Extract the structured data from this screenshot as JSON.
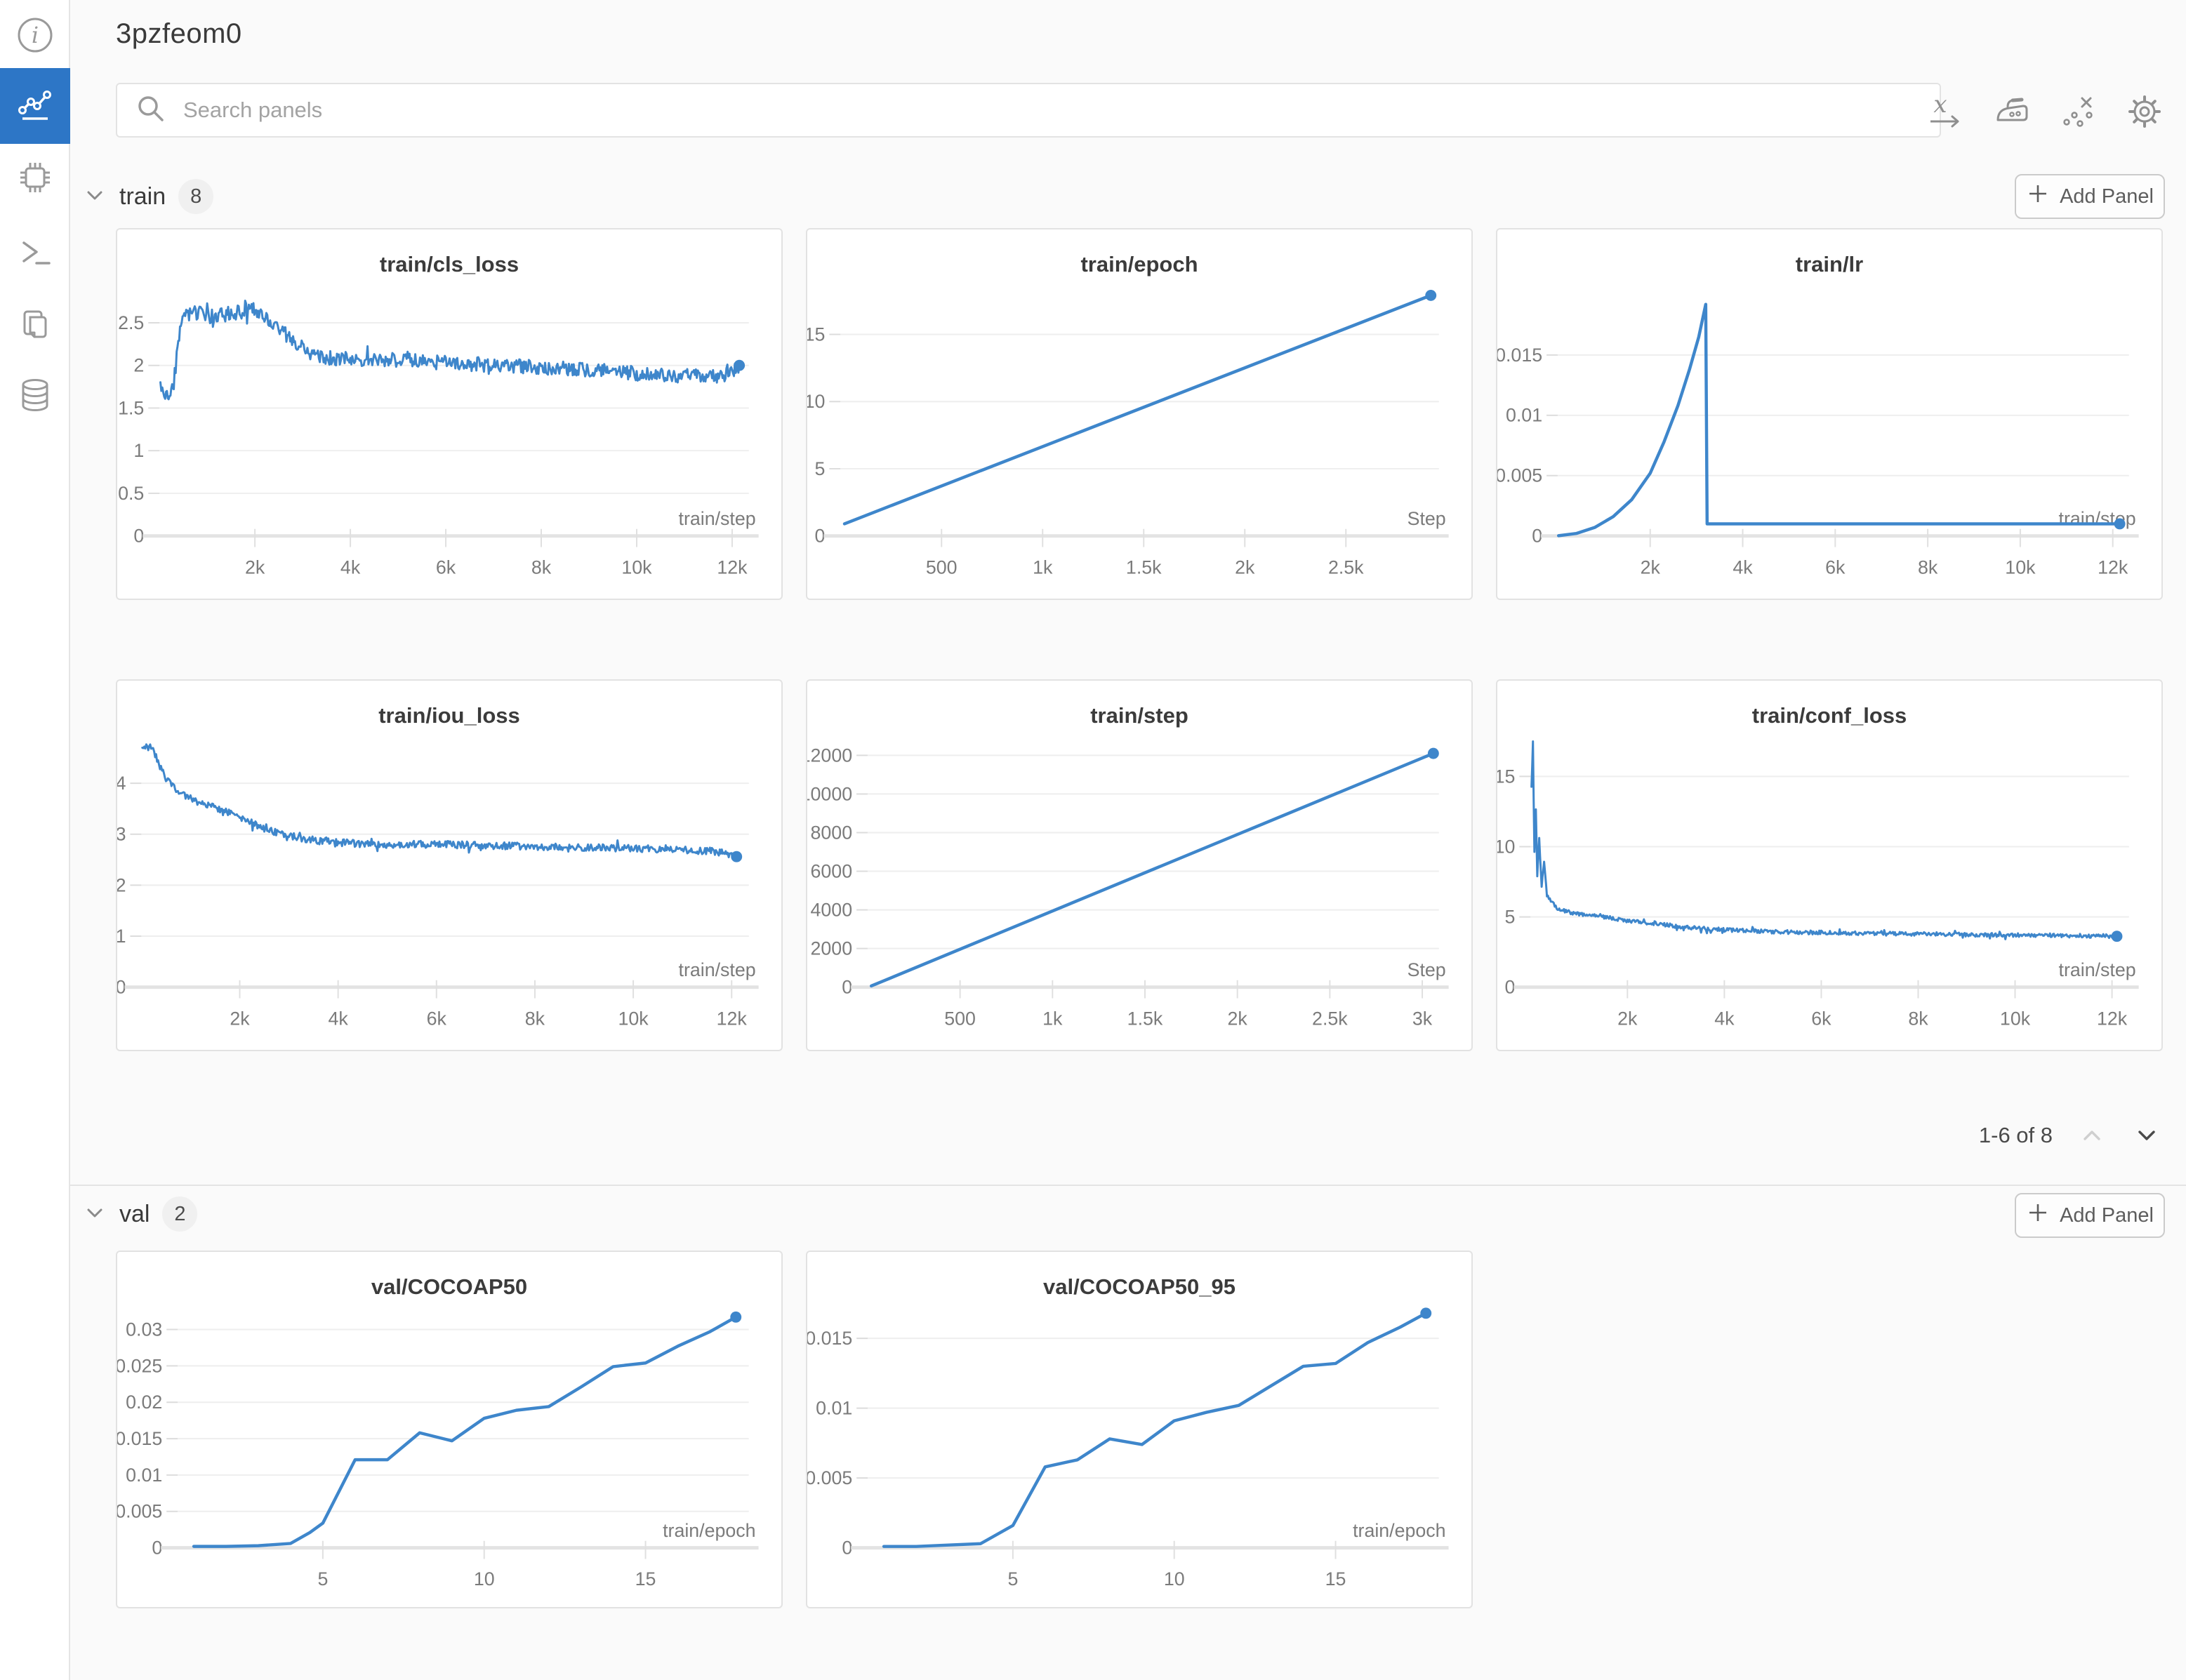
{
  "window": {
    "title": "3pzfeom0"
  },
  "colors": {
    "accent_line": "#3e86cb",
    "sidebar_active": "#2d76c6",
    "panel_border": "#e2e2e2",
    "grid_line": "#eeeeee",
    "axis_line": "#e3e3e3",
    "tick_text": "#7b7b7b"
  },
  "sidebar": {
    "icons": [
      "info-icon",
      "line-chart-icon",
      "chip-icon",
      "terminal-icon",
      "files-icon",
      "database-icon"
    ],
    "active_index": 1
  },
  "header": {
    "search_placeholder": "Search panels",
    "toolbar_icons": [
      "x-axis-icon",
      "smoothing-iron-icon",
      "outliers-icon",
      "settings-gear-icon"
    ]
  },
  "sections": [
    {
      "label": "train",
      "count": "8",
      "add_panel_label": "Add Panel",
      "pagination_text": "1-6 of 8"
    },
    {
      "label": "val",
      "count": "2",
      "add_panel_label": "Add Panel"
    }
  ],
  "chart_data": [
    {
      "title": "train/cls_loss",
      "type": "line",
      "geom": "train",
      "x_label": "train/step",
      "xlim": [
        0,
        12350
      ],
      "ylim": [
        0,
        2.9
      ],
      "x_ticks": [
        {
          "v": 2000,
          "label": "2k"
        },
        {
          "v": 4000,
          "label": "4k"
        },
        {
          "v": 6000,
          "label": "6k"
        },
        {
          "v": 8000,
          "label": "8k"
        },
        {
          "v": 10000,
          "label": "10k"
        },
        {
          "v": 12000,
          "label": "12k"
        }
      ],
      "y_ticks": [
        {
          "v": 0,
          "label": "0"
        },
        {
          "v": 0.5,
          "label": "0.5"
        },
        {
          "v": 1,
          "label": "1"
        },
        {
          "v": 1.5,
          "label": "1.5"
        },
        {
          "v": 2,
          "label": "2"
        },
        {
          "v": 2.5,
          "label": "2.5"
        }
      ],
      "end_dot": true,
      "series": [
        {
          "name": "3pzfeom0",
          "color": "#3e86cb",
          "noise": 0.085,
          "anchors": [
            [
              20,
              1.72
            ],
            [
              120,
              1.66
            ],
            [
              230,
              1.63
            ],
            [
              300,
              1.78
            ],
            [
              360,
              2.1
            ],
            [
              430,
              2.45
            ],
            [
              520,
              2.58
            ],
            [
              700,
              2.62
            ],
            [
              900,
              2.6
            ],
            [
              1100,
              2.57
            ],
            [
              1400,
              2.6
            ],
            [
              1700,
              2.63
            ],
            [
              1950,
              2.66
            ],
            [
              2200,
              2.56
            ],
            [
              2500,
              2.42
            ],
            [
              2800,
              2.3
            ],
            [
              3100,
              2.16
            ],
            [
              3400,
              2.1
            ],
            [
              3800,
              2.08
            ],
            [
              4300,
              2.07
            ],
            [
              5000,
              2.06
            ],
            [
              5600,
              2.04
            ],
            [
              6200,
              2.03
            ],
            [
              7000,
              2.0
            ],
            [
              7800,
              1.98
            ],
            [
              8600,
              1.96
            ],
            [
              9400,
              1.93
            ],
            [
              10200,
              1.9
            ],
            [
              10900,
              1.88
            ],
            [
              11500,
              1.87
            ],
            [
              12000,
              1.9
            ],
            [
              12150,
              2.0
            ]
          ]
        }
      ]
    },
    {
      "title": "train/epoch",
      "type": "line",
      "geom": "train",
      "x_label": "Step",
      "xlim": [
        0,
        2960
      ],
      "ylim": [
        0,
        18.4
      ],
      "x_ticks": [
        {
          "v": 500,
          "label": "500"
        },
        {
          "v": 1000,
          "label": "1k"
        },
        {
          "v": 1500,
          "label": "1.5k"
        },
        {
          "v": 2000,
          "label": "2k"
        },
        {
          "v": 2500,
          "label": "2.5k"
        }
      ],
      "y_ticks": [
        {
          "v": 0,
          "label": "0"
        },
        {
          "v": 5,
          "label": "5"
        },
        {
          "v": 10,
          "label": "10"
        },
        {
          "v": 15,
          "label": "15"
        }
      ],
      "end_dot": true,
      "series": [
        {
          "name": "3pzfeom0",
          "color": "#3e86cb",
          "noise": 0,
          "anchors": [
            [
              20,
              0.9
            ],
            [
              2920,
              17.9
            ]
          ]
        }
      ]
    },
    {
      "title": "train/lr",
      "type": "line",
      "geom": "train",
      "x_label": "train/step",
      "xlim": [
        0,
        12350
      ],
      "ylim": [
        0,
        0.0205
      ],
      "x_ticks": [
        {
          "v": 2000,
          "label": "2k"
        },
        {
          "v": 4000,
          "label": "4k"
        },
        {
          "v": 6000,
          "label": "6k"
        },
        {
          "v": 8000,
          "label": "8k"
        },
        {
          "v": 10000,
          "label": "10k"
        },
        {
          "v": 12000,
          "label": "12k"
        }
      ],
      "y_ticks": [
        {
          "v": 0,
          "label": "0"
        },
        {
          "v": 0.005,
          "label": "0.005"
        },
        {
          "v": 0.01,
          "label": "0.01"
        },
        {
          "v": 0.015,
          "label": "0.015"
        }
      ],
      "end_dot": true,
      "series": [
        {
          "name": "3pzfeom0",
          "color": "#3e86cb",
          "noise": 0,
          "anchors": [
            [
              20,
              2e-05
            ],
            [
              400,
              0.0002
            ],
            [
              800,
              0.0007
            ],
            [
              1200,
              0.0016
            ],
            [
              1600,
              0.003
            ],
            [
              2000,
              0.0052
            ],
            [
              2300,
              0.0078
            ],
            [
              2600,
              0.0108
            ],
            [
              2850,
              0.0138
            ],
            [
              3050,
              0.0165
            ],
            [
              3200,
              0.0192
            ],
            [
              3230,
              0.001
            ],
            [
              12150,
              0.001
            ]
          ]
        }
      ]
    },
    {
      "title": "train/iou_loss",
      "type": "line",
      "geom": "train",
      "x_label": "train/step",
      "xlim": [
        0,
        12350
      ],
      "ylim": [
        0,
        4.85
      ],
      "x_ticks": [
        {
          "v": 2000,
          "label": "2k"
        },
        {
          "v": 4000,
          "label": "4k"
        },
        {
          "v": 6000,
          "label": "6k"
        },
        {
          "v": 8000,
          "label": "8k"
        },
        {
          "v": 10000,
          "label": "10k"
        },
        {
          "v": 12000,
          "label": "12k"
        }
      ],
      "y_ticks": [
        {
          "v": 0,
          "label": "0"
        },
        {
          "v": 1,
          "label": "1"
        },
        {
          "v": 2,
          "label": "2"
        },
        {
          "v": 3,
          "label": "3"
        },
        {
          "v": 4,
          "label": "4"
        }
      ],
      "end_dot": true,
      "series": [
        {
          "name": "3pzfeom0",
          "color": "#3e86cb",
          "noise": 0.07,
          "anchors": [
            [
              20,
              4.72
            ],
            [
              180,
              4.7
            ],
            [
              260,
              4.6
            ],
            [
              340,
              4.42
            ],
            [
              420,
              4.25
            ],
            [
              520,
              4.05
            ],
            [
              650,
              3.92
            ],
            [
              800,
              3.82
            ],
            [
              1000,
              3.7
            ],
            [
              1300,
              3.58
            ],
            [
              1600,
              3.48
            ],
            [
              1900,
              3.38
            ],
            [
              2200,
              3.25
            ],
            [
              2500,
              3.12
            ],
            [
              2800,
              3.02
            ],
            [
              3100,
              2.95
            ],
            [
              3400,
              2.9
            ],
            [
              3800,
              2.85
            ],
            [
              4300,
              2.82
            ],
            [
              5000,
              2.8
            ],
            [
              6000,
              2.8
            ],
            [
              7000,
              2.78
            ],
            [
              8000,
              2.76
            ],
            [
              9000,
              2.74
            ],
            [
              10000,
              2.72
            ],
            [
              11000,
              2.7
            ],
            [
              11700,
              2.66
            ],
            [
              12100,
              2.56
            ]
          ]
        }
      ]
    },
    {
      "title": "train/step",
      "type": "line",
      "geom": "train",
      "x_label": "Step",
      "xlim": [
        0,
        3090
      ],
      "ylim": [
        0,
        12800
      ],
      "x_ticks": [
        {
          "v": 500,
          "label": "500"
        },
        {
          "v": 1000,
          "label": "1k"
        },
        {
          "v": 1500,
          "label": "1.5k"
        },
        {
          "v": 2000,
          "label": "2k"
        },
        {
          "v": 2500,
          "label": "2.5k"
        },
        {
          "v": 3000,
          "label": "3k"
        }
      ],
      "y_ticks": [
        {
          "v": 0,
          "label": "0"
        },
        {
          "v": 2000,
          "label": "2000"
        },
        {
          "v": 4000,
          "label": "4000"
        },
        {
          "v": 6000,
          "label": "6000"
        },
        {
          "v": 8000,
          "label": "8000"
        },
        {
          "v": 10000,
          "label": "10000"
        },
        {
          "v": 12000,
          "label": "12000"
        }
      ],
      "end_dot": true,
      "series": [
        {
          "name": "3pzfeom0",
          "color": "#3e86cb",
          "noise": 0,
          "anchors": [
            [
              20,
              60
            ],
            [
              3060,
              12100
            ]
          ]
        }
      ]
    },
    {
      "title": "train/conf_loss",
      "type": "line",
      "geom": "train",
      "x_label": "train/step",
      "xlim": [
        0,
        12350
      ],
      "ylim": [
        0,
        17.6
      ],
      "x_ticks": [
        {
          "v": 2000,
          "label": "2k"
        },
        {
          "v": 4000,
          "label": "4k"
        },
        {
          "v": 6000,
          "label": "6k"
        },
        {
          "v": 8000,
          "label": "8k"
        },
        {
          "v": 10000,
          "label": "10k"
        },
        {
          "v": 12000,
          "label": "12k"
        }
      ],
      "y_ticks": [
        {
          "v": 0,
          "label": "0"
        },
        {
          "v": 5,
          "label": "5"
        },
        {
          "v": 10,
          "label": "10"
        },
        {
          "v": 15,
          "label": "15"
        }
      ],
      "end_dot": true,
      "series": [
        {
          "name": "3pzfeom0",
          "color": "#3e86cb",
          "noise": 0.14,
          "anchors": [
            [
              20,
              14.2
            ],
            [
              50,
              17.4
            ],
            [
              80,
              9.5
            ],
            [
              110,
              12.6
            ],
            [
              140,
              8.0
            ],
            [
              180,
              10.5
            ],
            [
              230,
              7.2
            ],
            [
              280,
              8.8
            ],
            [
              340,
              6.6
            ],
            [
              420,
              6.1
            ],
            [
              520,
              5.7
            ],
            [
              650,
              5.5
            ],
            [
              850,
              5.3
            ],
            [
              1100,
              5.15
            ],
            [
              1500,
              5.0
            ],
            [
              2000,
              4.75
            ],
            [
              2500,
              4.55
            ],
            [
              3000,
              4.35
            ],
            [
              3600,
              4.15
            ],
            [
              4200,
              4.05
            ],
            [
              5000,
              3.95
            ],
            [
              6000,
              3.88
            ],
            [
              7000,
              3.82
            ],
            [
              8000,
              3.78
            ],
            [
              9000,
              3.74
            ],
            [
              10000,
              3.7
            ],
            [
              11000,
              3.68
            ],
            [
              12100,
              3.62
            ]
          ]
        }
      ]
    },
    {
      "title": "val/COCOAP50",
      "type": "line",
      "geom": "val",
      "x_label": "train/epoch",
      "xlim": [
        0.5,
        18.2
      ],
      "ylim": [
        0,
        0.033
      ],
      "x_ticks": [
        {
          "v": 5,
          "label": "5"
        },
        {
          "v": 10,
          "label": "10"
        },
        {
          "v": 15,
          "label": "15"
        }
      ],
      "y_ticks": [
        {
          "v": 0,
          "label": "0"
        },
        {
          "v": 0.005,
          "label": "0.005"
        },
        {
          "v": 0.01,
          "label": "0.01"
        },
        {
          "v": 0.015,
          "label": "0.015"
        },
        {
          "v": 0.02,
          "label": "0.02"
        },
        {
          "v": 0.025,
          "label": "0.025"
        },
        {
          "v": 0.03,
          "label": "0.03"
        }
      ],
      "end_dot": true,
      "series": [
        {
          "name": "3pzfeom0",
          "color": "#3e86cb",
          "noise": 0,
          "anchors": [
            [
              1,
              0.0002
            ],
            [
              2,
              0.0002
            ],
            [
              3,
              0.0003
            ],
            [
              4,
              0.0006
            ],
            [
              4.6,
              0.0021
            ],
            [
              5,
              0.0034
            ],
            [
              6,
              0.0121
            ],
            [
              7,
              0.0121
            ],
            [
              8,
              0.0158
            ],
            [
              9,
              0.0147
            ],
            [
              10,
              0.0178
            ],
            [
              11,
              0.0189
            ],
            [
              12,
              0.0194
            ],
            [
              13,
              0.0221
            ],
            [
              14,
              0.0249
            ],
            [
              15,
              0.0254
            ],
            [
              16,
              0.0277
            ],
            [
              17,
              0.0297
            ],
            [
              17.8,
              0.0317
            ]
          ]
        }
      ]
    },
    {
      "title": "val/COCOAP50_95",
      "type": "line",
      "geom": "val",
      "x_label": "train/epoch",
      "xlim": [
        0.5,
        18.2
      ],
      "ylim": [
        0,
        0.0172
      ],
      "x_ticks": [
        {
          "v": 5,
          "label": "5"
        },
        {
          "v": 10,
          "label": "10"
        },
        {
          "v": 15,
          "label": "15"
        }
      ],
      "y_ticks": [
        {
          "v": 0,
          "label": "0"
        },
        {
          "v": 0.005,
          "label": "0.005"
        },
        {
          "v": 0.01,
          "label": "0.01"
        },
        {
          "v": 0.015,
          "label": "0.015"
        }
      ],
      "end_dot": true,
      "series": [
        {
          "name": "3pzfeom0",
          "color": "#3e86cb",
          "noise": 0,
          "anchors": [
            [
              1,
              0.0001
            ],
            [
              2,
              0.0001
            ],
            [
              3,
              0.0002
            ],
            [
              4,
              0.0003
            ],
            [
              5,
              0.0016
            ],
            [
              6,
              0.0058
            ],
            [
              7,
              0.0063
            ],
            [
              8,
              0.0078
            ],
            [
              9,
              0.0074
            ],
            [
              10,
              0.0091
            ],
            [
              11,
              0.0097
            ],
            [
              12,
              0.0102
            ],
            [
              13,
              0.0116
            ],
            [
              14,
              0.013
            ],
            [
              15,
              0.0132
            ],
            [
              16,
              0.0147
            ],
            [
              17,
              0.0158
            ],
            [
              17.8,
              0.0168
            ]
          ]
        }
      ]
    }
  ]
}
